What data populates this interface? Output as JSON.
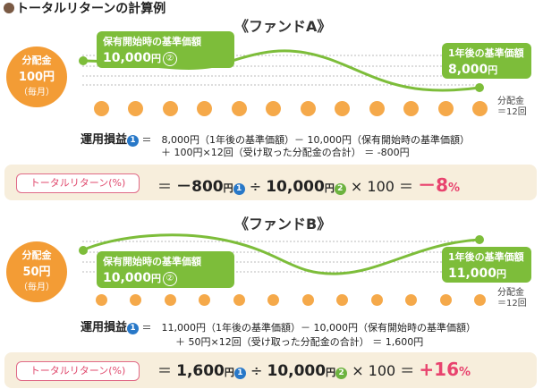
{
  "title": "トータルリターンの計算例",
  "colors": {
    "accent_green": "#7dbd3a",
    "accent_orange": "#f39c35",
    "accent_pink": "#e8436e",
    "band": "#f7eedc",
    "blue_badge": "#2878c8"
  },
  "fund_a": {
    "title": "《ファンドA》",
    "payout": {
      "line1": "分配金",
      "line2": "100円",
      "line3": "（毎月）"
    },
    "start_box": {
      "label": "保有開始時の基準価額",
      "value": "10,000",
      "unit": "円",
      "badge": "②"
    },
    "end_box": {
      "label": "1年後の基準価額",
      "value": "8,000",
      "unit": "円"
    },
    "dist_label": {
      "line1": "分配金",
      "line2": "＝12回"
    },
    "calc_title": "運用損益",
    "calc_badge": "1",
    "calc_line1": "＝　8,000円（1年後の基準価額）－ 10,000円（保有開始時の基準価額）",
    "calc_line2": "＋ 100円×12回（受け取った分配金の合計） ＝ -800円",
    "tr_label": "トータルリターン(%)",
    "eq_part1": "＝",
    "eq_val1": "－800",
    "eq_unit1": "円",
    "eq_badge1": "1",
    "eq_div": "÷",
    "eq_val2": "10,000",
    "eq_unit2": "円",
    "eq_badge2": "2",
    "eq_times": "× 100 ＝",
    "eq_result": "－8",
    "eq_pct": "%"
  },
  "fund_b": {
    "title": "《ファンドB》",
    "payout": {
      "line1": "分配金",
      "line2": "50円",
      "line3": "（毎月）"
    },
    "start_box": {
      "label": "保有開始時の基準価額",
      "value": "10,000",
      "unit": "円",
      "badge": "②"
    },
    "end_box": {
      "label": "1年後の基準価額",
      "value": "11,000",
      "unit": "円"
    },
    "dist_label": {
      "line1": "分配金",
      "line2": "＝12回"
    },
    "calc_title": "運用損益",
    "calc_badge": "1",
    "calc_line1": "＝　11,000円（1年後の基準価額）－ 10,000円（保有開始時の基準価額）",
    "calc_line2": "＋ 50円×12回（受け取った分配金の合計） ＝ 1,600円",
    "tr_label": "トータルリターン(%)",
    "eq_part1": "＝",
    "eq_val1": "1,600",
    "eq_unit1": "円",
    "eq_badge1": "1",
    "eq_div": "÷",
    "eq_val2": "10,000",
    "eq_unit2": "円",
    "eq_badge2": "2",
    "eq_times": "× 100 ＝",
    "eq_result": "+16",
    "eq_pct": "%"
  }
}
